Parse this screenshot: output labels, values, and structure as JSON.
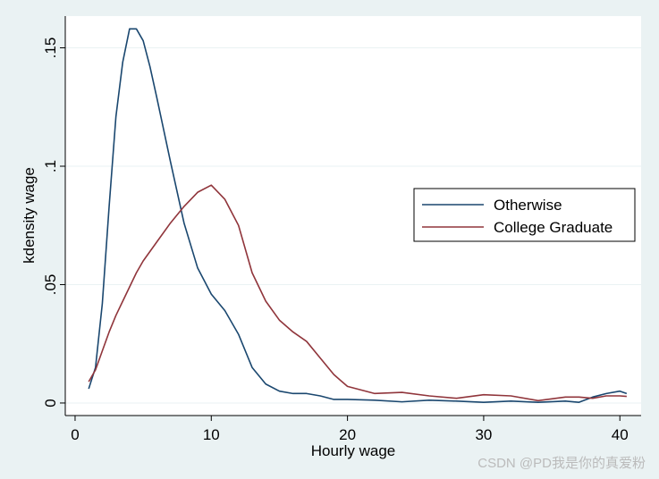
{
  "chart_data": {
    "type": "line",
    "x_label": "Hourly wage",
    "y_label": "kdensity wage",
    "x": [
      1,
      1.5,
      2,
      2.5,
      3,
      3.5,
      4,
      4.5,
      5,
      5.5,
      6,
      7,
      8,
      9,
      10,
      11,
      12,
      13,
      14,
      15,
      16,
      17,
      18,
      19,
      20,
      22,
      24,
      26,
      28,
      30,
      32,
      34,
      36,
      37,
      38,
      39,
      40,
      40.5
    ],
    "series": [
      {
        "name": "Otherwise",
        "color": "#1a476f",
        "values": [
          0.006,
          0.015,
          0.042,
          0.083,
          0.121,
          0.144,
          0.158,
          0.158,
          0.153,
          0.142,
          0.129,
          0.102,
          0.076,
          0.057,
          0.046,
          0.039,
          0.029,
          0.015,
          0.008,
          0.005,
          0.004,
          0.004,
          0.003,
          0.0015,
          0.0015,
          0.0012,
          0.0005,
          0.0012,
          0.0008,
          0.0003,
          0.0008,
          0.0003,
          0.0008,
          0.0003,
          0.0025,
          0.004,
          0.005,
          0.004
        ]
      },
      {
        "name": "College Graduate",
        "color": "#90353b",
        "values": [
          0.009,
          0.014,
          0.022,
          0.03,
          0.037,
          0.043,
          0.049,
          0.055,
          0.06,
          0.064,
          0.068,
          0.076,
          0.083,
          0.089,
          0.092,
          0.086,
          0.075,
          0.055,
          0.043,
          0.035,
          0.03,
          0.026,
          0.019,
          0.012,
          0.007,
          0.004,
          0.0045,
          0.003,
          0.002,
          0.0035,
          0.003,
          0.001,
          0.0025,
          0.0025,
          0.002,
          0.003,
          0.003,
          0.0028
        ]
      }
    ],
    "xlim": [
      -0.72,
      41.56
    ],
    "xticks": [
      0,
      10,
      20,
      30,
      40
    ],
    "ylim": [
      -0.0053,
      0.1634
    ],
    "yticks": [
      0,
      {
        "value": 0.05,
        "label": ".05"
      },
      {
        "value": 0.1,
        "label": ".1"
      },
      {
        "value": 0.15,
        "label": ".15"
      }
    ],
    "grid": true,
    "watermark": "CSDN @PD我是你的真爱粉"
  }
}
